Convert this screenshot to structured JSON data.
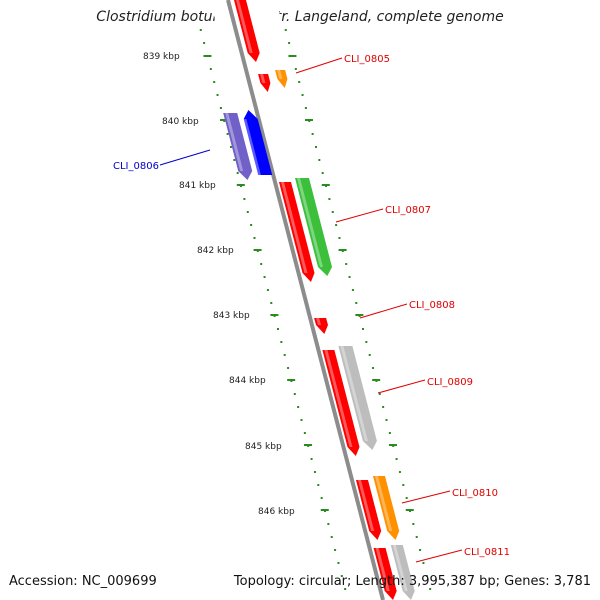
{
  "title": "Clostridium botulinum F str. Langeland, complete genome",
  "footer": {
    "accession": "Accession: NC_009699",
    "summary": "Topology: circular; Length: 3,995,387 bp; Genes: 3,781"
  },
  "colors": {
    "backbone": "#8c8c8c",
    "tick": "#2a8c1e",
    "red": "#ff0000",
    "orange": "#ff9000",
    "green": "#3cc03c",
    "blue": "#0000ff",
    "purple": "#7060c8",
    "gray": "#bdbdbd",
    "label_red": "#e00000",
    "label_blue": "#0000cc"
  },
  "scale_labels": [
    "839 kbp",
    "840 kbp",
    "841 kbp",
    "842 kbp",
    "843 kbp",
    "844 kbp",
    "845 kbp",
    "846 kbp"
  ],
  "gene_labels": [
    "CLI_0805",
    "CLI_0806",
    "CLI_0807",
    "CLI_0808",
    "CLI_0809",
    "CLI_0810",
    "CLI_0811"
  ]
}
